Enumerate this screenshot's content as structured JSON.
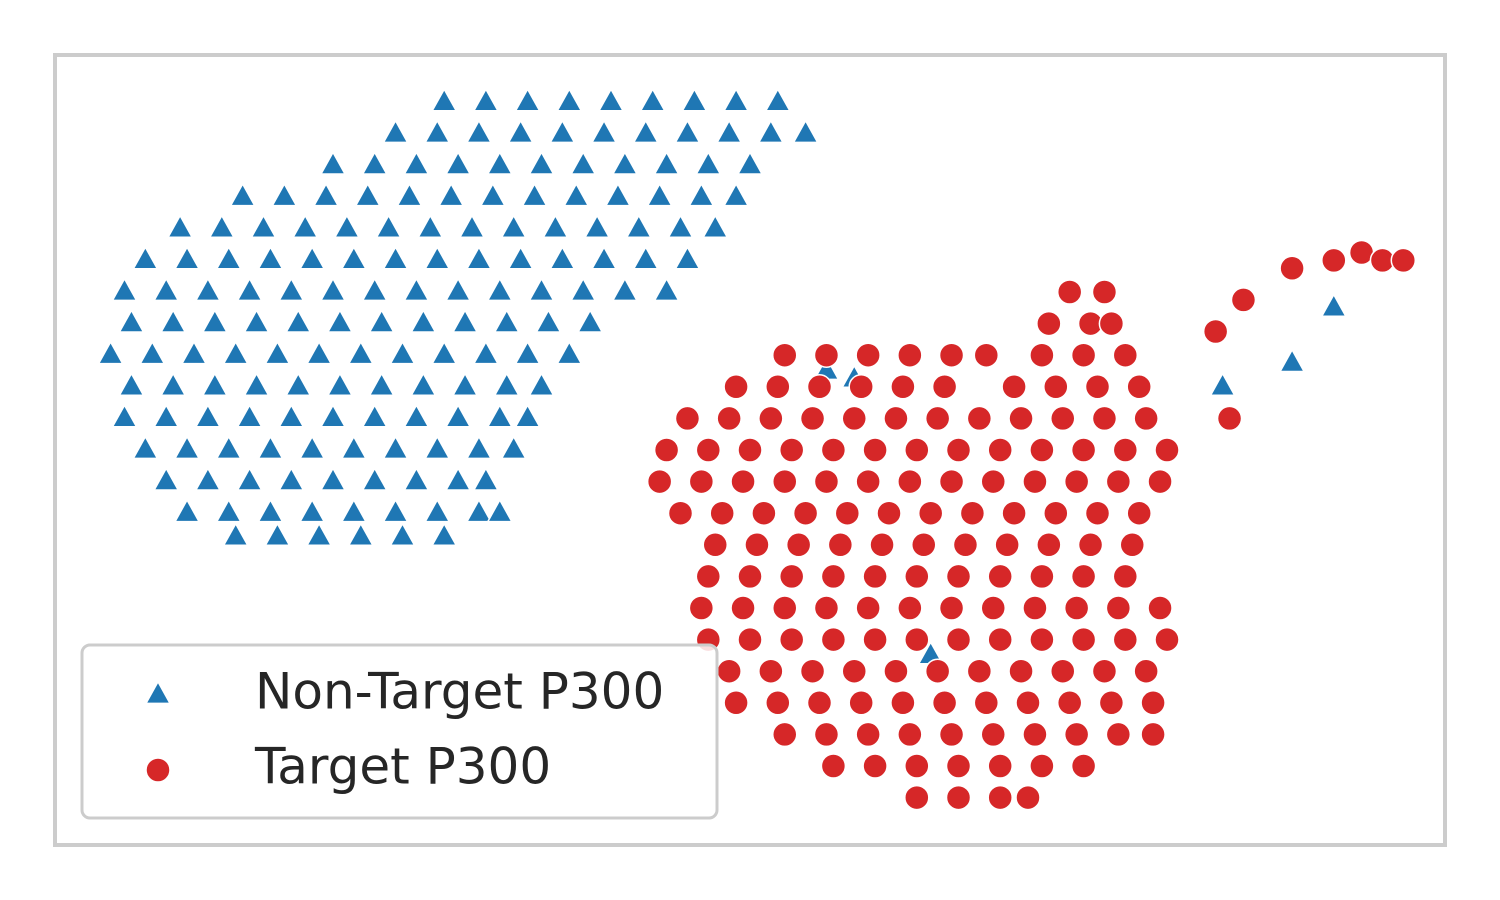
{
  "chart_data": {
    "type": "scatter",
    "xlim": [
      0,
      100
    ],
    "ylim": [
      0,
      100
    ],
    "legend": "lower left",
    "series": [
      {
        "name": "Non-Target P300",
        "color": "#1f77b4",
        "marker": "triangle",
        "x": [
          28,
          31,
          34,
          37,
          40,
          43,
          46,
          49,
          52,
          24.5,
          27.5,
          30.5,
          33.5,
          36.5,
          39.5,
          42.5,
          45.5,
          48.5,
          51.5,
          54,
          20,
          23,
          26,
          29,
          32,
          35,
          38,
          41,
          44,
          47,
          50,
          13.5,
          16.5,
          19.5,
          22.5,
          25.5,
          28.5,
          31.5,
          34.5,
          37.5,
          40.5,
          43.5,
          46.5,
          49,
          9,
          12,
          15,
          18,
          21,
          24,
          27,
          30,
          33,
          36,
          39,
          42,
          45,
          47.5,
          6.5,
          9.5,
          12.5,
          15.5,
          18.5,
          21.5,
          24.5,
          27.5,
          30.5,
          33.5,
          36.5,
          39.5,
          42.5,
          45.5,
          5,
          8,
          11,
          14,
          17,
          20,
          23,
          26,
          29,
          32,
          35,
          38,
          41,
          44,
          5.5,
          8.5,
          11.5,
          14.5,
          17.5,
          20.5,
          23.5,
          26.5,
          29.5,
          32.5,
          35.5,
          38.5,
          4,
          7,
          10,
          13,
          16,
          19,
          22,
          25,
          28,
          31,
          34,
          37,
          5.5,
          8.5,
          11.5,
          14.5,
          17.5,
          20.5,
          23.5,
          26.5,
          29.5,
          32.5,
          35,
          5,
          8,
          11,
          14,
          17,
          20,
          23,
          26,
          29,
          32,
          34,
          6.5,
          9.5,
          12.5,
          15.5,
          18.5,
          21.5,
          24.5,
          27.5,
          30.5,
          33,
          8,
          11,
          14,
          17,
          20,
          23,
          26,
          29,
          31,
          9.5,
          12.5,
          15.5,
          18.5,
          21.5,
          24.5,
          27.5,
          30.5,
          32,
          13,
          16,
          19,
          22,
          25,
          28,
          55.5,
          57.5,
          84,
          89,
          92,
          63
        ],
        "values": [
          94,
          94,
          94,
          94,
          94,
          94,
          94,
          94,
          94,
          90,
          90,
          90,
          90,
          90,
          90,
          90,
          90,
          90,
          90,
          90,
          86,
          86,
          86,
          86,
          86,
          86,
          86,
          86,
          86,
          86,
          86,
          82,
          82,
          82,
          82,
          82,
          82,
          82,
          82,
          82,
          82,
          82,
          82,
          82,
          78,
          78,
          78,
          78,
          78,
          78,
          78,
          78,
          78,
          78,
          78,
          78,
          78,
          78,
          74,
          74,
          74,
          74,
          74,
          74,
          74,
          74,
          74,
          74,
          74,
          74,
          74,
          74,
          70,
          70,
          70,
          70,
          70,
          70,
          70,
          70,
          70,
          70,
          70,
          70,
          70,
          70,
          66,
          66,
          66,
          66,
          66,
          66,
          66,
          66,
          66,
          66,
          66,
          66,
          62,
          62,
          62,
          62,
          62,
          62,
          62,
          62,
          62,
          62,
          62,
          62,
          58,
          58,
          58,
          58,
          58,
          58,
          58,
          58,
          58,
          58,
          58,
          54,
          54,
          54,
          54,
          54,
          54,
          54,
          54,
          54,
          54,
          54,
          50,
          50,
          50,
          50,
          50,
          50,
          50,
          50,
          50,
          50,
          46,
          46,
          46,
          46,
          46,
          46,
          46,
          46,
          46,
          42,
          42,
          42,
          42,
          42,
          42,
          42,
          42,
          42,
          39,
          39,
          39,
          39,
          39,
          39,
          60,
          59,
          58,
          61,
          68,
          24
        ]
      },
      {
        "name": "Target P300",
        "color": "#d62728",
        "marker": "circle",
        "x": [
          62,
          65,
          68,
          70,
          56,
          59,
          62,
          65,
          68,
          71,
          74,
          52.5,
          55.5,
          58.5,
          61.5,
          64.5,
          67.5,
          70.5,
          73.5,
          76.5,
          79,
          49,
          52,
          55,
          58,
          61,
          64,
          67,
          70,
          73,
          76,
          79,
          48.5,
          51.5,
          54.5,
          57.5,
          60.5,
          63.5,
          66.5,
          69.5,
          72.5,
          75.5,
          78.5,
          47,
          50,
          53,
          56,
          59,
          62,
          65,
          68,
          71,
          74,
          77,
          80,
          46.5,
          49.5,
          52.5,
          55.5,
          58.5,
          61.5,
          64.5,
          67.5,
          70.5,
          73.5,
          76.5,
          79.5,
          47,
          50,
          53,
          56,
          59,
          62,
          65,
          68,
          71,
          74,
          77,
          47.5,
          50.5,
          53.5,
          56.5,
          59.5,
          62.5,
          65.5,
          68.5,
          71.5,
          74.5,
          77.5,
          45,
          48,
          51,
          54,
          57,
          60,
          63,
          66,
          69,
          72,
          75,
          78,
          43.5,
          46.5,
          49.5,
          52.5,
          55.5,
          58.5,
          61.5,
          64.5,
          67.5,
          70.5,
          73.5,
          76.5,
          79.5,
          44,
          47,
          50,
          53,
          56,
          59,
          62,
          65,
          68,
          71,
          74,
          77,
          80,
          45.5,
          48.5,
          51.5,
          54.5,
          57.5,
          60.5,
          63.5,
          66.5,
          69.5,
          72.5,
          75.5,
          78.5,
          49,
          52,
          55,
          58,
          61,
          64,
          69,
          72,
          75,
          78,
          52.5,
          55.5,
          58.5,
          61.5,
          64.5,
          67,
          71,
          74,
          77,
          71.5,
          74.5,
          76,
          73,
          75.5,
          83.5,
          85.5,
          89,
          92,
          94,
          95.5,
          97,
          84.5
        ],
        "values": [
          6,
          6,
          6,
          6,
          10,
          10,
          10,
          10,
          10,
          10,
          10,
          14,
          14,
          14,
          14,
          14,
          14,
          14,
          14,
          14,
          14,
          18,
          18,
          18,
          18,
          18,
          18,
          18,
          18,
          18,
          18,
          18,
          22,
          22,
          22,
          22,
          22,
          22,
          22,
          22,
          22,
          22,
          22,
          26,
          26,
          26,
          26,
          26,
          26,
          26,
          26,
          26,
          26,
          26,
          26,
          30,
          30,
          30,
          30,
          30,
          30,
          30,
          30,
          30,
          30,
          30,
          30,
          34,
          34,
          34,
          34,
          34,
          34,
          34,
          34,
          34,
          34,
          34,
          38,
          38,
          38,
          38,
          38,
          38,
          38,
          38,
          38,
          38,
          38,
          42,
          42,
          42,
          42,
          42,
          42,
          42,
          42,
          42,
          42,
          42,
          42,
          46,
          46,
          46,
          46,
          46,
          46,
          46,
          46,
          46,
          46,
          46,
          46,
          46,
          50,
          50,
          50,
          50,
          50,
          50,
          50,
          50,
          50,
          50,
          50,
          50,
          50,
          54,
          54,
          54,
          54,
          54,
          54,
          54,
          54,
          54,
          54,
          54,
          54,
          58,
          58,
          58,
          58,
          58,
          58,
          58,
          58,
          58,
          58,
          62,
          62,
          62,
          62,
          62,
          62,
          62,
          62,
          62,
          66,
          66,
          66,
          70,
          70,
          65,
          69,
          73,
          74,
          75,
          74,
          74,
          54
        ]
      }
    ]
  }
}
